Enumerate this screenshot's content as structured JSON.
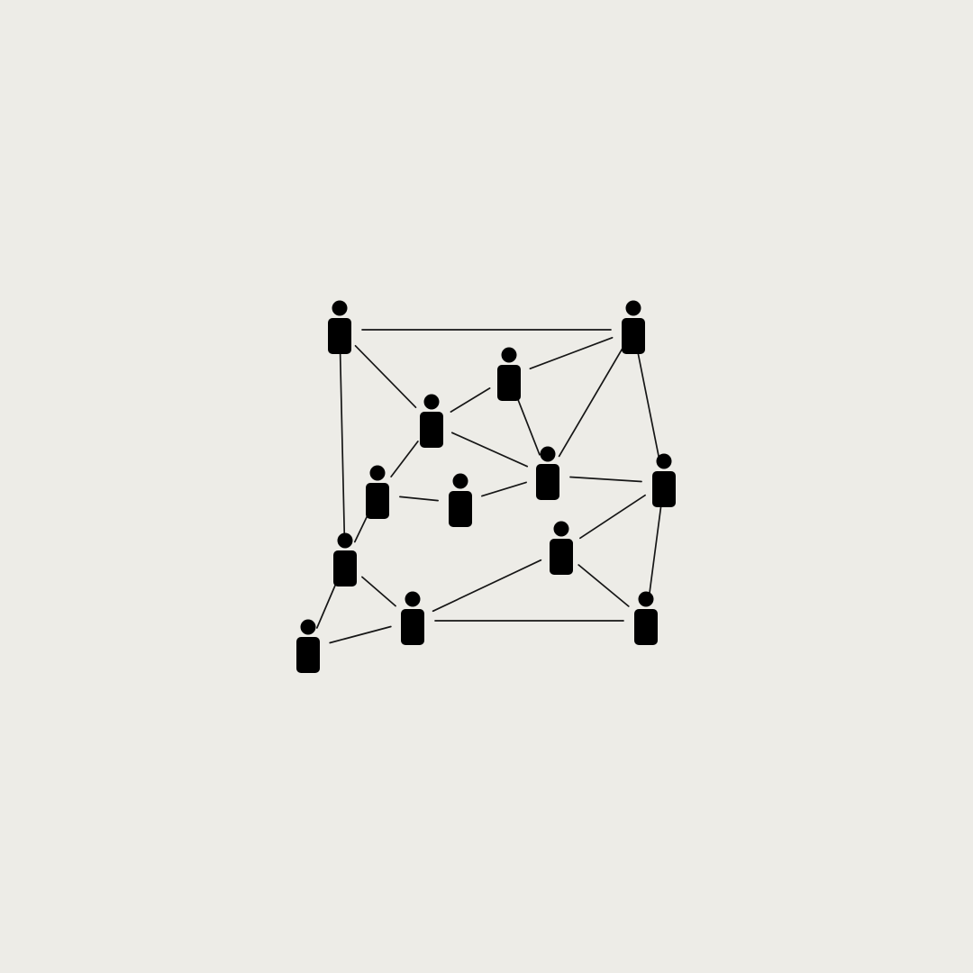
{
  "diagram": {
    "type": "network",
    "theme": {
      "background": "#edece7",
      "icon_color": "#000000",
      "edge_color": "#161616"
    },
    "nodes": [
      {
        "id": "n1",
        "icon": "person-icon"
      },
      {
        "id": "n2",
        "icon": "person-icon"
      },
      {
        "id": "n3",
        "icon": "person-icon"
      },
      {
        "id": "n4",
        "icon": "person-icon"
      },
      {
        "id": "n5",
        "icon": "person-icon"
      },
      {
        "id": "n6",
        "icon": "person-icon"
      },
      {
        "id": "n7",
        "icon": "person-icon"
      },
      {
        "id": "n8",
        "icon": "person-icon"
      },
      {
        "id": "n9",
        "icon": "person-icon"
      },
      {
        "id": "n10",
        "icon": "person-icon"
      },
      {
        "id": "n11",
        "icon": "person-icon"
      },
      {
        "id": "n12",
        "icon": "person-icon"
      },
      {
        "id": "n13",
        "icon": "person-icon"
      },
      {
        "id": "n14",
        "icon": "person-icon"
      }
    ],
    "edges": [
      [
        "n1",
        "n2"
      ],
      [
        "n1",
        "n4"
      ],
      [
        "n1",
        "n10"
      ],
      [
        "n2",
        "n3"
      ],
      [
        "n2",
        "n6"
      ],
      [
        "n2",
        "n9"
      ],
      [
        "n3",
        "n4"
      ],
      [
        "n3",
        "n6"
      ],
      [
        "n4",
        "n6"
      ],
      [
        "n4",
        "n5"
      ],
      [
        "n5",
        "n7"
      ],
      [
        "n7",
        "n6"
      ],
      [
        "n6",
        "n9"
      ],
      [
        "n5",
        "n10"
      ],
      [
        "n9",
        "n8"
      ],
      [
        "n9",
        "n13"
      ],
      [
        "n8",
        "n11"
      ],
      [
        "n8",
        "n13"
      ],
      [
        "n10",
        "n11"
      ],
      [
        "n10",
        "n12"
      ],
      [
        "n12",
        "n11"
      ],
      [
        "n11",
        "n13"
      ]
    ]
  }
}
